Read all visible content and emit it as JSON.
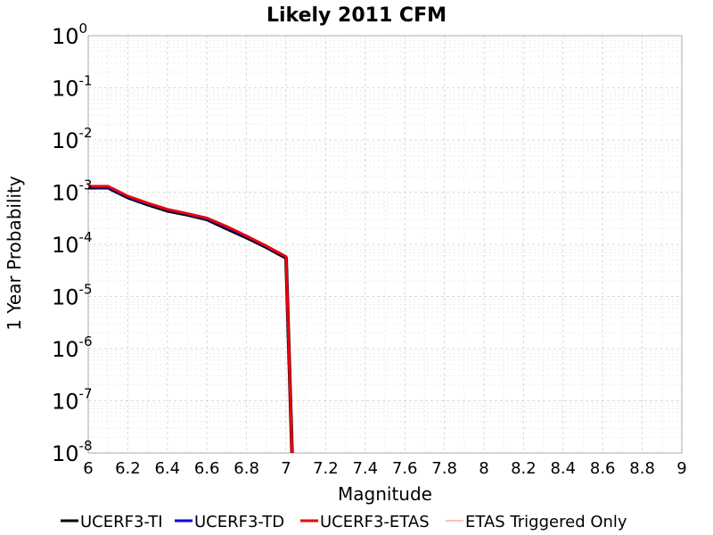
{
  "chart_data": {
    "type": "line",
    "title": "Likely 2011 CFM",
    "xlabel": "Magnitude",
    "ylabel": "1 Year Probability",
    "xlim": [
      6,
      9
    ],
    "ylim": [
      1e-08,
      1
    ],
    "yscale": "log",
    "grid": true,
    "legend_position": "bottom",
    "x_ticks": [
      "6",
      "6.2",
      "6.4",
      "6.6",
      "6.8",
      "7",
      "7.2",
      "7.4",
      "7.6",
      "7.8",
      "8",
      "8.2",
      "8.4",
      "8.6",
      "8.8",
      "9"
    ],
    "y_ticks": [
      {
        "base": "10",
        "exp": "0"
      },
      {
        "base": "10",
        "exp": "-1"
      },
      {
        "base": "10",
        "exp": "-2"
      },
      {
        "base": "10",
        "exp": "-3"
      },
      {
        "base": "10",
        "exp": "-4"
      },
      {
        "base": "10",
        "exp": "-5"
      },
      {
        "base": "10",
        "exp": "-6"
      },
      {
        "base": "10",
        "exp": "-7"
      },
      {
        "base": "10",
        "exp": "-8"
      }
    ],
    "series": [
      {
        "name": "UCERF3-TI",
        "color": "#000000",
        "width": 4,
        "x": [
          6.0,
          6.1,
          6.2,
          6.3,
          6.4,
          6.5,
          6.6,
          6.7,
          6.8,
          6.9,
          7.0,
          7.03
        ],
        "y": [
          0.00122,
          0.00122,
          0.00079,
          0.00058,
          0.00044,
          0.00037,
          0.0003,
          0.0002,
          0.000135,
          8.8e-05,
          5.5e-05,
          1e-08
        ]
      },
      {
        "name": "UCERF3-TD",
        "color": "#0000dd",
        "width": 3,
        "x": [
          6.0,
          6.1,
          6.2,
          6.3,
          6.4,
          6.5,
          6.6,
          6.7,
          6.8,
          6.9,
          7.0,
          7.03
        ],
        "y": [
          0.00125,
          0.00125,
          0.00081,
          0.0006,
          0.00046,
          0.00038,
          0.00031,
          0.00021,
          0.00014,
          9.1e-05,
          5.7e-05,
          1e-08
        ]
      },
      {
        "name": "UCERF3-ETAS",
        "color": "#ee0000",
        "width": 3,
        "x": [
          6.0,
          6.1,
          6.2,
          6.3,
          6.4,
          6.5,
          6.6,
          6.7,
          6.8,
          6.9,
          7.0,
          7.03
        ],
        "y": [
          0.0013,
          0.0013,
          0.00084,
          0.00062,
          0.00047,
          0.00039,
          0.00032,
          0.00022,
          0.000145,
          9.3e-05,
          5.8e-05,
          1e-08
        ]
      },
      {
        "name": "ETAS Triggered Only",
        "color": "#f08080",
        "width": 1,
        "x": [],
        "y": []
      }
    ]
  }
}
